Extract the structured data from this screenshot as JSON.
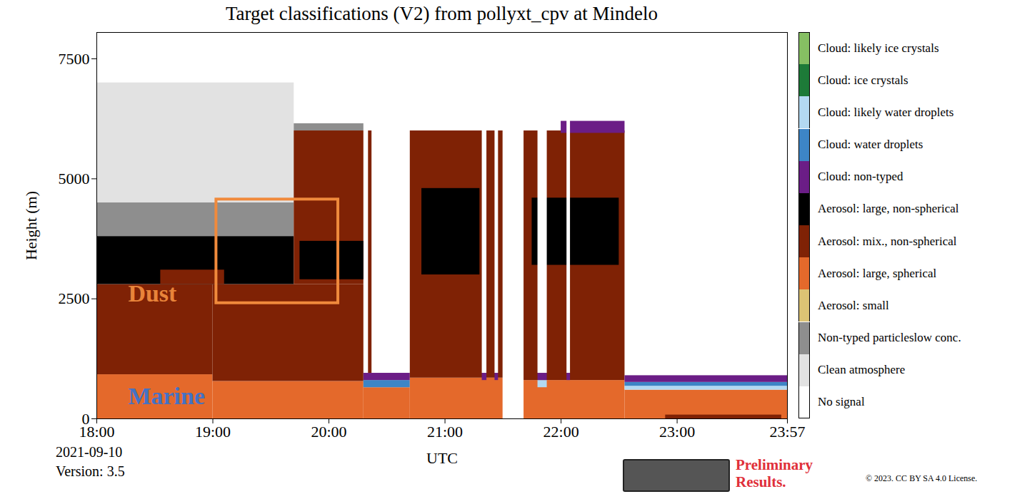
{
  "chart_data": {
    "type": "classification",
    "title": "Target classifications (V2) from pollyxt_cpv at Mindelo",
    "xlabel": "UTC",
    "ylabel": "Height (m)",
    "date": "2021-09-10",
    "version": "Version: 3.5",
    "footer": "Preliminary Results.",
    "license": "© 2023. CC BY SA 4.0 License.",
    "xlim": [
      18,
      23.95
    ],
    "xticks": [
      {
        "value": 18,
        "label": "18:00"
      },
      {
        "value": 19,
        "label": "19:00"
      },
      {
        "value": 20,
        "label": "20:00"
      },
      {
        "value": 21,
        "label": "21:00"
      },
      {
        "value": 22,
        "label": "22:00"
      },
      {
        "value": 23,
        "label": "23:00"
      },
      {
        "value": 23.95,
        "label": "23:57"
      }
    ],
    "ylim": [
      0,
      8050
    ],
    "yticks": [
      0,
      2500,
      5000,
      7500
    ],
    "classes": [
      {
        "name": "Cloud: likely ice crystals",
        "color": "#86bf63"
      },
      {
        "name": "Cloud: ice crystals",
        "color": "#1d7a38"
      },
      {
        "name": "Cloud: likely water droplets",
        "color": "#b3d9f2"
      },
      {
        "name": "Cloud: water droplets",
        "color": "#3d85c6"
      },
      {
        "name": "Cloud: non-typed",
        "color": "#6b1d86"
      },
      {
        "name": "Aerosol: large, non-spherical",
        "color": "#000000"
      },
      {
        "name": "Aerosol: mix., non-spherical",
        "color": "#7f2205"
      },
      {
        "name": "Aerosol: large, spherical",
        "color": "#e4692b"
      },
      {
        "name": "Aerosol: small",
        "color": "#dcc374"
      },
      {
        "name": "Non-typed particleslow conc.",
        "color": "#8e8e8e"
      },
      {
        "name": "Clean atmosphere",
        "color": "#e2e2e2"
      },
      {
        "name": "No signal",
        "color": "#ffffff"
      }
    ],
    "layers": [
      {
        "x1": 18,
        "x2": 19,
        "y1": 0,
        "y2": 920,
        "class": 7
      },
      {
        "x1": 19,
        "x2": 20.3,
        "y1": 0,
        "y2": 780,
        "class": 7
      },
      {
        "x1": 18,
        "x2": 19,
        "y1": 920,
        "y2": 2800,
        "class": 6
      },
      {
        "x1": 19,
        "x2": 20.3,
        "y1": 780,
        "y2": 2800,
        "class": 6
      },
      {
        "x1": 18,
        "x2": 19.7,
        "y1": 2800,
        "y2": 3800,
        "class": 5
      },
      {
        "x1": 18.55,
        "x2": 19.1,
        "y1": 2800,
        "y2": 3100,
        "class": 6
      },
      {
        "x1": 18,
        "x2": 19.7,
        "y1": 3800,
        "y2": 4500,
        "class": 9
      },
      {
        "x1": 18,
        "x2": 19.7,
        "y1": 4500,
        "y2": 7000,
        "class": 10
      },
      {
        "x1": 19.7,
        "x2": 20.3,
        "y1": 2800,
        "y2": 6000,
        "class": 6
      },
      {
        "x1": 19.75,
        "x2": 20.3,
        "y1": 2900,
        "y2": 3700,
        "class": 5
      },
      {
        "x1": 19.7,
        "x2": 20.3,
        "y1": 6000,
        "y2": 6150,
        "class": 9
      },
      {
        "x1": 20.3,
        "x2": 20.7,
        "y1": 0,
        "y2": 650,
        "class": 7
      },
      {
        "x1": 20.3,
        "x2": 20.7,
        "y1": 650,
        "y2": 800,
        "class": 3
      },
      {
        "x1": 20.3,
        "x2": 20.7,
        "y1": 800,
        "y2": 950,
        "class": 4
      },
      {
        "x1": 20.34,
        "x2": 20.37,
        "y1": 950,
        "y2": 6000,
        "class": 6
      },
      {
        "x1": 20.7,
        "x2": 21.5,
        "y1": 0,
        "y2": 850,
        "class": 7
      },
      {
        "x1": 20.7,
        "x2": 21.5,
        "y1": 850,
        "y2": 6000,
        "class": 6
      },
      {
        "x1": 20.8,
        "x2": 21.3,
        "y1": 3000,
        "y2": 4800,
        "class": 5
      },
      {
        "x1": 21.32,
        "x2": 21.36,
        "y1": 800,
        "y2": 950,
        "class": 4
      },
      {
        "x1": 21.32,
        "x2": 21.36,
        "y1": 950,
        "y2": 6050,
        "class": 11
      },
      {
        "x1": 21.43,
        "x2": 21.46,
        "y1": 800,
        "y2": 950,
        "class": 4
      },
      {
        "x1": 21.43,
        "x2": 21.46,
        "y1": 950,
        "y2": 6050,
        "class": 11
      },
      {
        "x1": 21.5,
        "x2": 21.68,
        "y1": 0,
        "y2": 8050,
        "class": 11
      },
      {
        "x1": 21.68,
        "x2": 22.55,
        "y1": 0,
        "y2": 800,
        "class": 7
      },
      {
        "x1": 21.68,
        "x2": 22.55,
        "y1": 800,
        "y2": 6000,
        "class": 6
      },
      {
        "x1": 21.75,
        "x2": 22.5,
        "y1": 3200,
        "y2": 4600,
        "class": 5
      },
      {
        "x1": 22.0,
        "x2": 22.55,
        "y1": 5950,
        "y2": 6200,
        "class": 4
      },
      {
        "x1": 21.8,
        "x2": 21.88,
        "y1": 650,
        "y2": 800,
        "class": 2
      },
      {
        "x1": 21.8,
        "x2": 21.88,
        "y1": 800,
        "y2": 950,
        "class": 4
      },
      {
        "x1": 21.8,
        "x2": 21.88,
        "y1": 950,
        "y2": 6250,
        "class": 11
      },
      {
        "x1": 22.05,
        "x2": 22.08,
        "y1": 800,
        "y2": 950,
        "class": 4
      },
      {
        "x1": 22.05,
        "x2": 22.08,
        "y1": 950,
        "y2": 6250,
        "class": 11
      },
      {
        "x1": 22.55,
        "x2": 23.95,
        "y1": 0,
        "y2": 600,
        "class": 7
      },
      {
        "x1": 22.55,
        "x2": 23.95,
        "y1": 600,
        "y2": 680,
        "class": 2
      },
      {
        "x1": 22.55,
        "x2": 23.95,
        "y1": 680,
        "y2": 760,
        "class": 3
      },
      {
        "x1": 22.55,
        "x2": 23.95,
        "y1": 760,
        "y2": 900,
        "class": 4
      },
      {
        "x1": 22.9,
        "x2": 23.9,
        "y1": 0,
        "y2": 80,
        "class": 6
      }
    ],
    "annotations": [
      {
        "text": "Dust",
        "x": 18.27,
        "y": 2600,
        "color": "#e8843a"
      },
      {
        "text": "Marine",
        "x": 18.27,
        "y": 470,
        "color": "#4472c4"
      }
    ],
    "box": {
      "x1": 19.03,
      "x2": 20.08,
      "y1": 2410,
      "y2": 4570,
      "color": "#f08a3c"
    }
  }
}
